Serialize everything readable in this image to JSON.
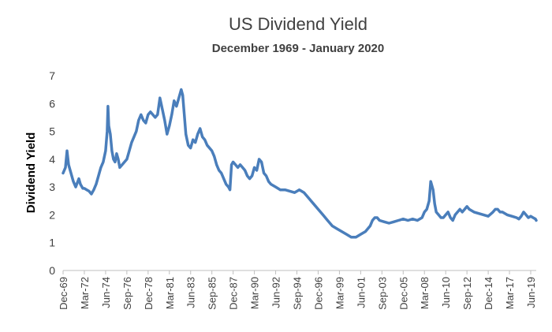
{
  "chart_data": {
    "type": "line",
    "title": "US Dividend Yield",
    "subtitle": "December 1969 - January 2020",
    "xlabel": "",
    "ylabel": "Dividend Yield",
    "ylim": [
      0,
      7
    ],
    "yticks": [
      0,
      1,
      2,
      3,
      4,
      5,
      6,
      7
    ],
    "xlim": [
      "Dec-69",
      "Jan-20"
    ],
    "grid": false,
    "legend": "none",
    "x_tick_labels": [
      "Dec-69",
      "Mar-72",
      "Jun-74",
      "Sep-76",
      "Dec-78",
      "Mar-81",
      "Jun-83",
      "Sep-85",
      "Dec-87",
      "Mar-90",
      "Jun-92",
      "Sep-94",
      "Dec-96",
      "Mar-99",
      "Jun-01",
      "Sep-03",
      "Dec-05",
      "Mar-08",
      "Jun-10",
      "Sep-12",
      "Dec-14",
      "Mar-17",
      "Jun-19"
    ],
    "series": [
      {
        "color": "#4a7ebb",
        "x": [
          "1969-12",
          "1970-03",
          "1970-05",
          "1970-07",
          "1970-09",
          "1971-01",
          "1971-04",
          "1971-08",
          "1971-10",
          "1972-01",
          "1972-03",
          "1972-06",
          "1972-09",
          "1972-12",
          "1973-03",
          "1973-06",
          "1973-09",
          "1973-12",
          "1974-03",
          "1974-06",
          "1974-08",
          "1974-09",
          "1974-10",
          "1974-12",
          "1975-02",
          "1975-04",
          "1975-06",
          "1975-08",
          "1975-10",
          "1975-12",
          "1976-03",
          "1976-06",
          "1976-09",
          "1976-12",
          "1977-03",
          "1977-06",
          "1977-09",
          "1977-12",
          "1978-03",
          "1978-06",
          "1978-09",
          "1978-12",
          "1979-03",
          "1979-06",
          "1979-09",
          "1979-12",
          "1980-03",
          "1980-06",
          "1980-09",
          "1980-12",
          "1981-03",
          "1981-06",
          "1981-09",
          "1981-12",
          "1982-03",
          "1982-06",
          "1982-08",
          "1982-10",
          "1982-12",
          "1983-03",
          "1983-06",
          "1983-09",
          "1983-12",
          "1984-03",
          "1984-06",
          "1984-09",
          "1984-12",
          "1985-03",
          "1985-06",
          "1985-09",
          "1985-12",
          "1986-03",
          "1986-06",
          "1986-09",
          "1986-12",
          "1987-03",
          "1987-06",
          "1987-08",
          "1987-10",
          "1987-12",
          "1988-03",
          "1988-06",
          "1988-09",
          "1988-12",
          "1989-03",
          "1989-06",
          "1989-09",
          "1989-12",
          "1990-03",
          "1990-06",
          "1990-09",
          "1990-12",
          "1991-03",
          "1991-06",
          "1991-09",
          "1991-12",
          "1992-06",
          "1992-12",
          "1993-06",
          "1993-12",
          "1994-06",
          "1994-12",
          "1995-06",
          "1995-12",
          "1996-06",
          "1996-12",
          "1997-06",
          "1997-12",
          "1998-06",
          "1998-12",
          "1999-06",
          "1999-12",
          "2000-06",
          "2000-12",
          "2001-06",
          "2001-12",
          "2002-06",
          "2002-09",
          "2002-12",
          "2003-03",
          "2003-06",
          "2003-12",
          "2004-06",
          "2004-12",
          "2005-06",
          "2005-12",
          "2006-06",
          "2006-12",
          "2007-06",
          "2007-12",
          "2008-03",
          "2008-06",
          "2008-09",
          "2008-11",
          "2009-02",
          "2009-04",
          "2009-06",
          "2009-09",
          "2009-12",
          "2010-03",
          "2010-06",
          "2010-09",
          "2010-12",
          "2011-03",
          "2011-06",
          "2011-09",
          "2011-12",
          "2012-03",
          "2012-06",
          "2012-09",
          "2012-12",
          "2013-06",
          "2013-12",
          "2014-06",
          "2014-12",
          "2015-06",
          "2015-09",
          "2015-12",
          "2016-03",
          "2016-06",
          "2016-12",
          "2017-06",
          "2017-12",
          "2018-03",
          "2018-06",
          "2018-09",
          "2018-12",
          "2019-03",
          "2019-06",
          "2019-09",
          "2019-12",
          "2020-01"
        ],
        "values": [
          3.5,
          3.7,
          4.3,
          3.8,
          3.6,
          3.2,
          3.0,
          3.3,
          3.1,
          2.95,
          2.95,
          2.9,
          2.85,
          2.75,
          2.9,
          3.1,
          3.4,
          3.7,
          3.9,
          4.3,
          5.0,
          5.9,
          5.2,
          4.9,
          4.3,
          4.0,
          3.9,
          4.2,
          4.0,
          3.7,
          3.8,
          3.9,
          4.0,
          4.3,
          4.6,
          4.8,
          5.0,
          5.4,
          5.6,
          5.4,
          5.3,
          5.6,
          5.7,
          5.6,
          5.5,
          5.6,
          6.2,
          5.8,
          5.4,
          4.9,
          5.2,
          5.6,
          6.1,
          5.9,
          6.2,
          6.5,
          6.3,
          5.6,
          4.9,
          4.5,
          4.4,
          4.7,
          4.6,
          4.9,
          5.1,
          4.8,
          4.7,
          4.5,
          4.4,
          4.3,
          4.1,
          3.8,
          3.6,
          3.5,
          3.3,
          3.1,
          3.0,
          2.9,
          3.8,
          3.9,
          3.8,
          3.7,
          3.8,
          3.7,
          3.6,
          3.4,
          3.3,
          3.4,
          3.7,
          3.6,
          4.0,
          3.9,
          3.5,
          3.4,
          3.2,
          3.1,
          3.0,
          2.9,
          2.9,
          2.85,
          2.8,
          2.9,
          2.8,
          2.6,
          2.4,
          2.2,
          2.0,
          1.8,
          1.6,
          1.5,
          1.4,
          1.3,
          1.2,
          1.2,
          1.3,
          1.4,
          1.6,
          1.8,
          1.9,
          1.9,
          1.8,
          1.75,
          1.7,
          1.75,
          1.8,
          1.85,
          1.8,
          1.85,
          1.8,
          1.9,
          2.1,
          2.2,
          2.5,
          3.2,
          2.9,
          2.4,
          2.1,
          2.0,
          1.9,
          1.9,
          2.0,
          2.1,
          1.9,
          1.8,
          2.0,
          2.1,
          2.2,
          2.1,
          2.2,
          2.3,
          2.2,
          2.1,
          2.05,
          2.0,
          1.95,
          2.1,
          2.2,
          2.2,
          2.1,
          2.1,
          2.0,
          1.95,
          1.9,
          1.85,
          1.95,
          2.1,
          2.0,
          1.9,
          1.95,
          1.9,
          1.85,
          1.8
        ]
      }
    ]
  }
}
